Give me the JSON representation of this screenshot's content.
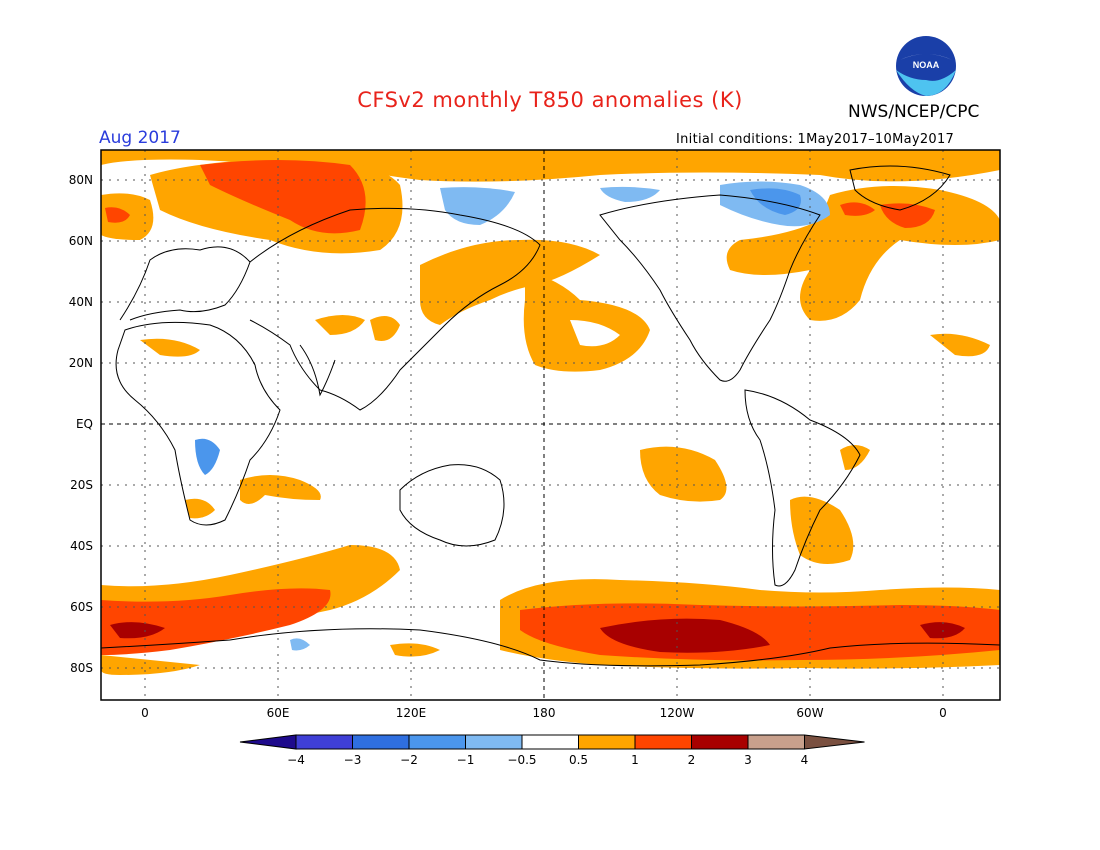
{
  "title": "CFSv2 monthly T850 anomalies (K)",
  "agency": "NWS/NCEP/CPC",
  "logo_text": "NOAA",
  "valid_month": "Aug 2017",
  "initial_conditions": "Initial conditions: 1May2017–10May2017",
  "map": {
    "lat_labels": [
      "80N",
      "60N",
      "40N",
      "20N",
      "EQ",
      "20S",
      "40S",
      "60S",
      "80S"
    ],
    "lon_labels": [
      "0",
      "60E",
      "120E",
      "180",
      "120W",
      "60W",
      "0"
    ]
  },
  "colorbar": {
    "labels": [
      "−4",
      "−3",
      "−2",
      "−1",
      "−0.5",
      "0.5",
      "1",
      "2",
      "3",
      "4"
    ],
    "colors": [
      "#1e0a8c",
      "#3f3fd6",
      "#2f6fe0",
      "#4b96ec",
      "#7fbaf2",
      "#ffffff",
      "#ffa500",
      "#ff4500",
      "#a80000",
      "#c8a08c",
      "#7a5040"
    ]
  },
  "palette": {
    "warm1": "#ffa500",
    "warm2": "#ff4500",
    "warm3": "#a80000",
    "cool1": "#7fbaf2",
    "cool2": "#4b96ec"
  }
}
